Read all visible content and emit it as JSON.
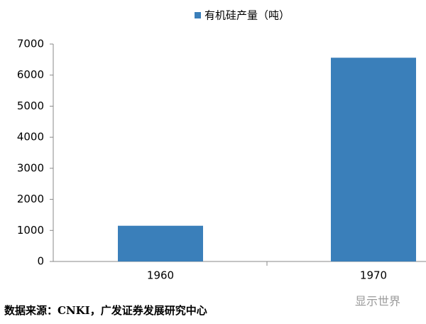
{
  "chart_data": {
    "type": "bar",
    "legend_label": "有机硅产量（吨）",
    "categories": [
      "1960",
      "1970"
    ],
    "values": [
      1150,
      6560
    ],
    "color": "#3a7fba",
    "ylim": [
      0,
      7000
    ],
    "yticks": [
      0,
      1000,
      2000,
      3000,
      4000,
      5000,
      6000,
      7000
    ],
    "source": "数据来源：CNKI，广发证券发展研究中心",
    "watermark": "显示世界"
  }
}
